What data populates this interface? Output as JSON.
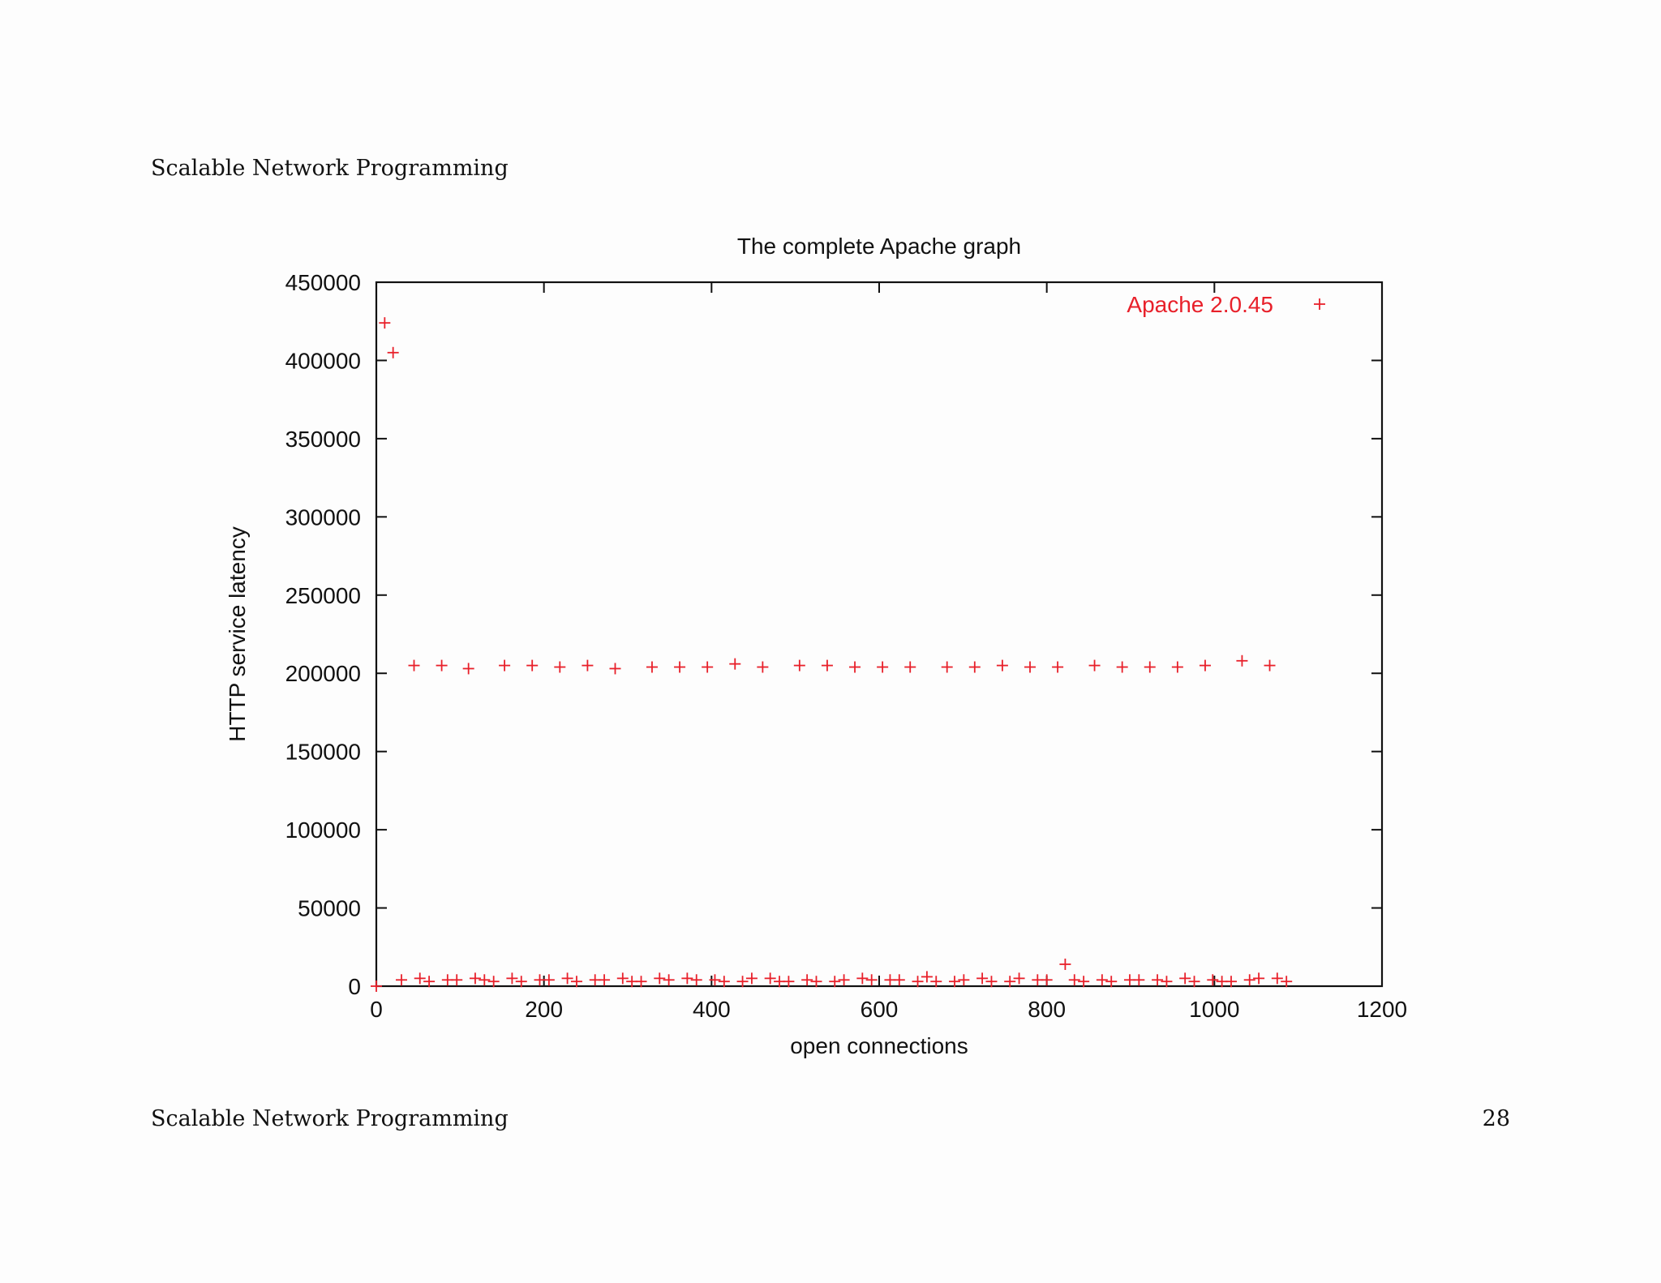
{
  "slide": {
    "header": "Scalable Network Programming",
    "footer": "Scalable Network Programming",
    "page_number": "28"
  },
  "chart_data": {
    "type": "scatter",
    "title": "The complete Apache graph",
    "xlabel": "open connections",
    "ylabel": "HTTP service latency",
    "xlim": [
      0,
      1200
    ],
    "ylim": [
      0,
      450000
    ],
    "xticks": [
      "0",
      "200",
      "400",
      "600",
      "800",
      "1000",
      "1200"
    ],
    "yticks": [
      "0",
      "50000",
      "100000",
      "150000",
      "200000",
      "250000",
      "300000",
      "350000",
      "400000",
      "450000"
    ],
    "grid": false,
    "legend_position": "top-right",
    "marker": "plus",
    "color": "#e8202a",
    "series": [
      {
        "name": "Apache 2.0.45",
        "points": [
          [
            0,
            0
          ],
          [
            10,
            424000
          ],
          [
            20,
            405000
          ],
          [
            45,
            205000
          ],
          [
            78,
            205000
          ],
          [
            110,
            203000
          ],
          [
            153,
            205000
          ],
          [
            186,
            205000
          ],
          [
            219,
            204000
          ],
          [
            252,
            205000
          ],
          [
            285,
            203000
          ],
          [
            329,
            204000
          ],
          [
            362,
            204000
          ],
          [
            395,
            204000
          ],
          [
            428,
            206000
          ],
          [
            461,
            204000
          ],
          [
            505,
            205000
          ],
          [
            538,
            205000
          ],
          [
            571,
            204000
          ],
          [
            604,
            204000
          ],
          [
            637,
            204000
          ],
          [
            681,
            204000
          ],
          [
            714,
            204000
          ],
          [
            747,
            205000
          ],
          [
            780,
            204000
          ],
          [
            813,
            204000
          ],
          [
            857,
            205000
          ],
          [
            890,
            204000
          ],
          [
            923,
            204000
          ],
          [
            956,
            204000
          ],
          [
            989,
            205000
          ],
          [
            1033,
            208000
          ],
          [
            1066,
            205000
          ],
          [
            30,
            4000
          ],
          [
            52,
            5000
          ],
          [
            63,
            3000
          ],
          [
            85,
            4000
          ],
          [
            96,
            4000
          ],
          [
            118,
            5000
          ],
          [
            129,
            4000
          ],
          [
            140,
            3000
          ],
          [
            162,
            5000
          ],
          [
            173,
            3000
          ],
          [
            195,
            4000
          ],
          [
            206,
            4000
          ],
          [
            228,
            5000
          ],
          [
            239,
            3000
          ],
          [
            261,
            4000
          ],
          [
            272,
            4000
          ],
          [
            294,
            5000
          ],
          [
            305,
            3000
          ],
          [
            316,
            3000
          ],
          [
            338,
            5000
          ],
          [
            349,
            4000
          ],
          [
            371,
            5000
          ],
          [
            382,
            4000
          ],
          [
            404,
            4000
          ],
          [
            415,
            3000
          ],
          [
            437,
            3000
          ],
          [
            448,
            5000
          ],
          [
            470,
            5000
          ],
          [
            481,
            3000
          ],
          [
            492,
            3000
          ],
          [
            514,
            4000
          ],
          [
            525,
            3000
          ],
          [
            547,
            3000
          ],
          [
            558,
            4000
          ],
          [
            580,
            5000
          ],
          [
            591,
            4000
          ],
          [
            613,
            4000
          ],
          [
            624,
            4000
          ],
          [
            646,
            3000
          ],
          [
            657,
            6000
          ],
          [
            668,
            3000
          ],
          [
            690,
            3000
          ],
          [
            701,
            4000
          ],
          [
            723,
            5000
          ],
          [
            734,
            3000
          ],
          [
            756,
            3000
          ],
          [
            767,
            5000
          ],
          [
            789,
            4000
          ],
          [
            800,
            4000
          ],
          [
            822,
            14000
          ],
          [
            833,
            4000
          ],
          [
            844,
            3000
          ],
          [
            866,
            4000
          ],
          [
            877,
            3000
          ],
          [
            899,
            4000
          ],
          [
            910,
            4000
          ],
          [
            932,
            4000
          ],
          [
            943,
            3000
          ],
          [
            965,
            5000
          ],
          [
            976,
            3000
          ],
          [
            998,
            4000
          ],
          [
            1009,
            3000
          ],
          [
            1020,
            3000
          ],
          [
            1042,
            4000
          ],
          [
            1053,
            5000
          ],
          [
            1075,
            5000
          ],
          [
            1086,
            3000
          ]
        ]
      }
    ]
  }
}
